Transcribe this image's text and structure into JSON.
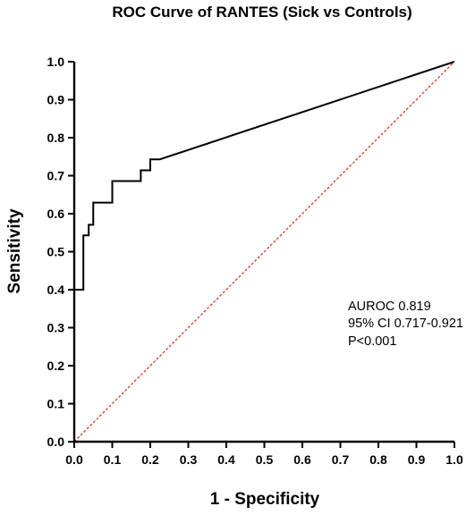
{
  "chart_data": {
    "type": "line",
    "title": "ROC Curve of RANTES (Sick vs Controls)",
    "xlabel": "1 - Specificity",
    "ylabel": "Sensitivity",
    "xlim": [
      0,
      1
    ],
    "ylim": [
      0,
      1
    ],
    "xticks": [
      "0.0",
      "0.1",
      "0.2",
      "0.3",
      "0.4",
      "0.5",
      "0.6",
      "0.7",
      "0.8",
      "0.9",
      "1.0"
    ],
    "yticks": [
      "0.0",
      "0.1",
      "0.2",
      "0.3",
      "0.4",
      "0.5",
      "0.6",
      "0.7",
      "0.8",
      "0.9",
      "1.0"
    ],
    "grid": false,
    "series": [
      {
        "color": "#000000",
        "style": "step",
        "x": [
          0,
          0.024,
          0.024,
          0.038,
          0.038,
          0.05,
          0.05,
          0.1,
          0.1,
          0.175,
          0.175,
          0.2,
          0.2,
          0.225,
          1.0
        ],
        "y": [
          0.4,
          0.4,
          0.543,
          0.543,
          0.571,
          0.571,
          0.629,
          0.629,
          0.686,
          0.686,
          0.714,
          0.714,
          0.743,
          0.743,
          1.0
        ]
      },
      {
        "color": "#e0261d",
        "style": "dashed",
        "x": [
          0,
          1
        ],
        "y": [
          0,
          1
        ]
      }
    ],
    "annotations": [
      "AUROC 0.819",
      "95% CI 0.717-0.921",
      "P<0.001"
    ]
  }
}
